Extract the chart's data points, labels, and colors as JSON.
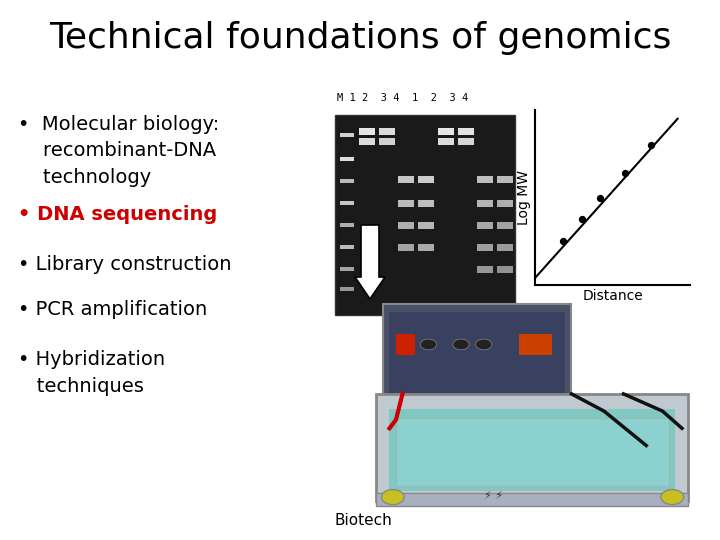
{
  "title": "Technical foundations of genomics",
  "title_fontsize": 26,
  "title_color": "#000000",
  "background_color": "#ffffff",
  "bullet_fontsize": 14,
  "gel_label": "M 1 2  3 4  1  2  3 4",
  "gel_label_fontsize": 7.5,
  "graph_xlabel": "Distance",
  "graph_ylabel": "Log MW",
  "graph_xlabel_fontsize": 10,
  "graph_ylabel_fontsize": 10,
  "graph_scatter_x": [
    0.18,
    0.3,
    0.42,
    0.58,
    0.75
  ],
  "graph_scatter_y": [
    0.25,
    0.38,
    0.5,
    0.64,
    0.8
  ],
  "biotech_label": "Biotech",
  "biotech_fontsize": 11
}
